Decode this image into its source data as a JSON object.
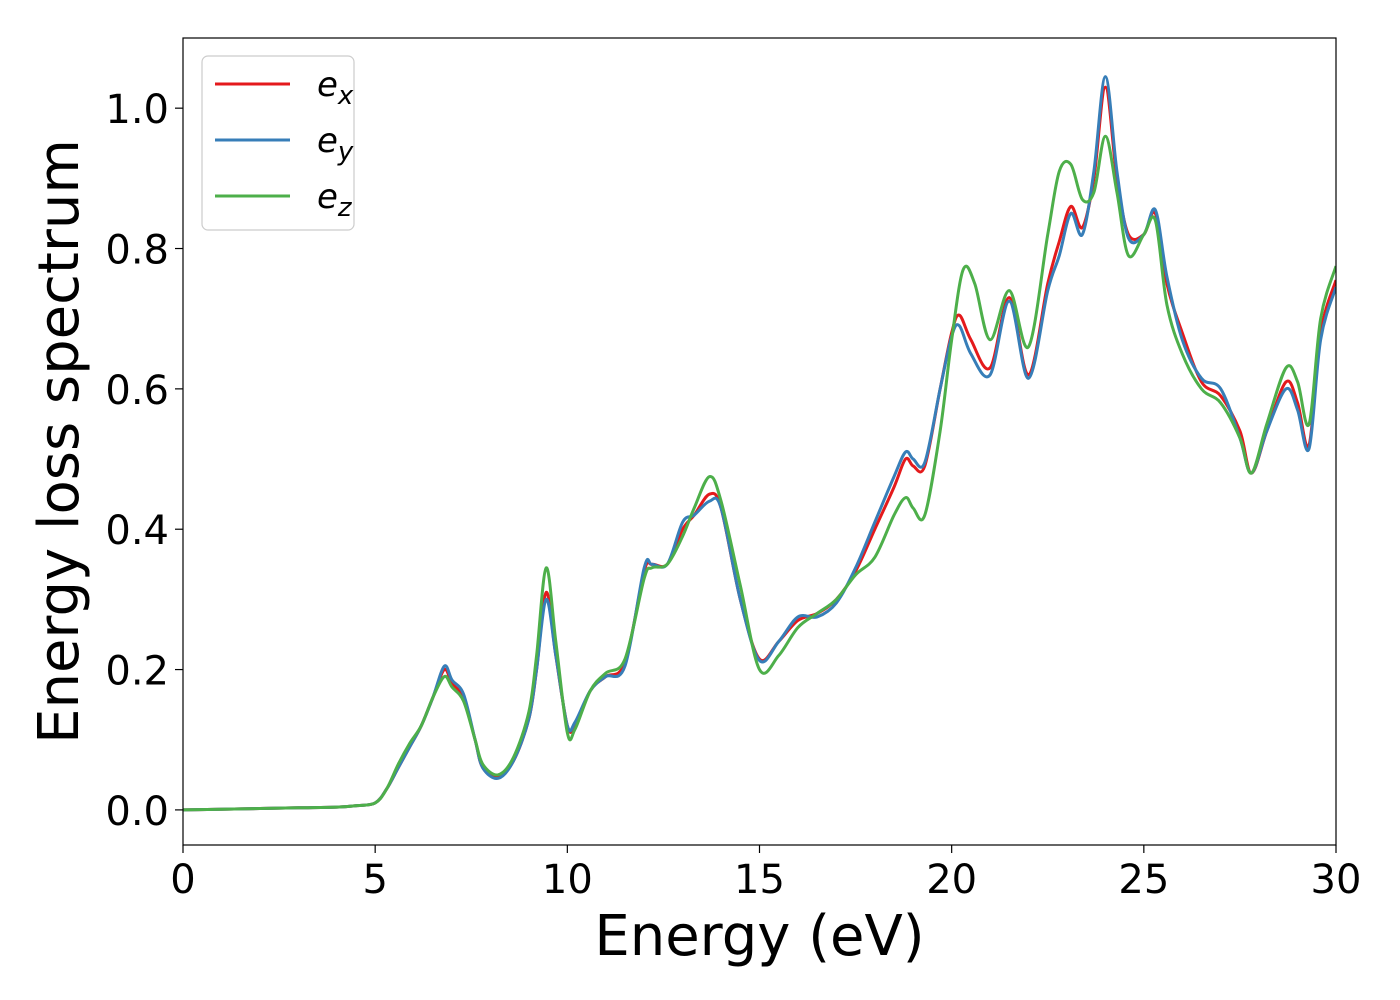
{
  "chart_data": {
    "type": "line",
    "title": "",
    "xlabel": "Energy (eV)",
    "ylabel": "Energy loss spectrum",
    "xlim": [
      0,
      30
    ],
    "ylim": [
      -0.05,
      1.1
    ],
    "xticks": [
      0,
      5,
      10,
      15,
      20,
      25,
      30
    ],
    "xtick_labels": [
      "0",
      "5",
      "10",
      "15",
      "20",
      "25",
      "30"
    ],
    "yticks": [
      0.0,
      0.2,
      0.4,
      0.6,
      0.8,
      1.0
    ],
    "ytick_labels": [
      "0.0",
      "0.2",
      "0.4",
      "0.6",
      "0.8",
      "1.0"
    ],
    "grid": false,
    "legend_position": "top-left",
    "series": [
      {
        "name": "e_x",
        "label_base": "e",
        "label_sub": "x",
        "color": "#e41a1c",
        "x": [
          0,
          1,
          2,
          3,
          4,
          4.5,
          5,
          5.3,
          5.6,
          5.9,
          6.2,
          6.5,
          6.8,
          7.0,
          7.3,
          7.6,
          7.8,
          8.2,
          8.6,
          9.0,
          9.2,
          9.45,
          9.7,
          10.0,
          10.2,
          10.6,
          11.0,
          11.5,
          12.0,
          12.2,
          12.6,
          13.0,
          13.3,
          13.7,
          14.0,
          14.5,
          15.0,
          15.5,
          16.0,
          16.5,
          17.0,
          17.5,
          18.0,
          18.5,
          18.8,
          19.0,
          19.3,
          19.7,
          20.0,
          20.2,
          20.5,
          21.0,
          21.5,
          22.0,
          22.5,
          22.8,
          23.1,
          23.4,
          23.7,
          24.0,
          24.3,
          24.6,
          25.0,
          25.3,
          25.6,
          26.0,
          26.5,
          27.0,
          27.5,
          27.8,
          28.2,
          28.7,
          29.0,
          29.3,
          29.6,
          30.0
        ],
        "values": [
          0.0,
          0.001,
          0.002,
          0.003,
          0.004,
          0.006,
          0.01,
          0.03,
          0.06,
          0.09,
          0.12,
          0.16,
          0.2,
          0.18,
          0.16,
          0.1,
          0.06,
          0.048,
          0.07,
          0.13,
          0.2,
          0.31,
          0.22,
          0.12,
          0.12,
          0.17,
          0.19,
          0.21,
          0.34,
          0.35,
          0.35,
          0.4,
          0.42,
          0.45,
          0.43,
          0.3,
          0.215,
          0.24,
          0.27,
          0.28,
          0.3,
          0.34,
          0.4,
          0.46,
          0.5,
          0.49,
          0.49,
          0.6,
          0.68,
          0.705,
          0.67,
          0.63,
          0.73,
          0.62,
          0.75,
          0.81,
          0.86,
          0.83,
          0.9,
          1.03,
          0.9,
          0.82,
          0.82,
          0.85,
          0.75,
          0.68,
          0.61,
          0.59,
          0.54,
          0.48,
          0.54,
          0.61,
          0.58,
          0.52,
          0.68,
          0.755
        ]
      },
      {
        "name": "e_y",
        "label_base": "e",
        "label_sub": "y",
        "color": "#377eb8",
        "x": [
          0,
          1,
          2,
          3,
          4,
          4.5,
          5,
          5.3,
          5.6,
          5.9,
          6.2,
          6.5,
          6.8,
          7.0,
          7.3,
          7.6,
          7.8,
          8.2,
          8.6,
          9.0,
          9.2,
          9.45,
          9.7,
          10.0,
          10.2,
          10.6,
          11.0,
          11.5,
          12.0,
          12.2,
          12.6,
          13.0,
          13.3,
          13.7,
          14.0,
          14.5,
          15.0,
          15.5,
          16.0,
          16.5,
          17.0,
          17.5,
          18.0,
          18.5,
          18.8,
          19.0,
          19.3,
          19.7,
          20.0,
          20.2,
          20.5,
          21.0,
          21.5,
          22.0,
          22.5,
          22.8,
          23.1,
          23.4,
          23.7,
          24.0,
          24.3,
          24.6,
          25.0,
          25.3,
          25.6,
          26.0,
          26.5,
          27.0,
          27.5,
          27.8,
          28.2,
          28.7,
          29.0,
          29.3,
          29.6,
          30.0
        ],
        "values": [
          0.0,
          0.001,
          0.002,
          0.003,
          0.004,
          0.006,
          0.01,
          0.03,
          0.06,
          0.09,
          0.12,
          0.16,
          0.205,
          0.185,
          0.165,
          0.1,
          0.06,
          0.045,
          0.07,
          0.13,
          0.2,
          0.3,
          0.22,
          0.12,
          0.125,
          0.17,
          0.19,
          0.205,
          0.345,
          0.35,
          0.35,
          0.41,
          0.42,
          0.44,
          0.43,
          0.3,
          0.213,
          0.24,
          0.275,
          0.275,
          0.295,
          0.345,
          0.41,
          0.475,
          0.51,
          0.5,
          0.495,
          0.6,
          0.675,
          0.69,
          0.65,
          0.62,
          0.725,
          0.615,
          0.74,
          0.79,
          0.85,
          0.82,
          0.91,
          1.045,
          0.91,
          0.815,
          0.82,
          0.855,
          0.76,
          0.67,
          0.615,
          0.6,
          0.53,
          0.48,
          0.54,
          0.6,
          0.57,
          0.515,
          0.67,
          0.745
        ]
      },
      {
        "name": "e_z",
        "label_base": "e",
        "label_sub": "z",
        "color": "#4daf4a",
        "x": [
          0,
          1,
          2,
          3,
          4,
          4.5,
          5,
          5.3,
          5.6,
          5.9,
          6.2,
          6.5,
          6.8,
          7.0,
          7.3,
          7.6,
          7.8,
          8.2,
          8.6,
          9.0,
          9.2,
          9.45,
          9.7,
          10.0,
          10.2,
          10.6,
          11.0,
          11.5,
          12.0,
          12.2,
          12.6,
          13.0,
          13.3,
          13.7,
          14.0,
          14.5,
          15.0,
          15.5,
          16.0,
          16.5,
          17.0,
          17.5,
          18.0,
          18.5,
          18.8,
          19.0,
          19.3,
          19.7,
          20.0,
          20.3,
          20.6,
          21.0,
          21.5,
          22.0,
          22.5,
          22.8,
          23.1,
          23.4,
          23.7,
          24.0,
          24.3,
          24.6,
          25.0,
          25.3,
          25.6,
          26.0,
          26.5,
          27.0,
          27.5,
          27.8,
          28.2,
          28.7,
          29.0,
          29.3,
          29.6,
          30.0
        ],
        "values": [
          0.0,
          0.001,
          0.002,
          0.003,
          0.004,
          0.006,
          0.01,
          0.03,
          0.065,
          0.095,
          0.12,
          0.16,
          0.19,
          0.175,
          0.155,
          0.1,
          0.065,
          0.05,
          0.075,
          0.14,
          0.22,
          0.345,
          0.24,
          0.11,
          0.115,
          0.17,
          0.195,
          0.215,
          0.33,
          0.345,
          0.35,
          0.39,
          0.43,
          0.475,
          0.44,
          0.32,
          0.2,
          0.22,
          0.26,
          0.28,
          0.3,
          0.335,
          0.36,
          0.42,
          0.445,
          0.43,
          0.42,
          0.54,
          0.67,
          0.77,
          0.75,
          0.67,
          0.74,
          0.66,
          0.82,
          0.91,
          0.92,
          0.87,
          0.88,
          0.96,
          0.88,
          0.79,
          0.82,
          0.84,
          0.72,
          0.65,
          0.6,
          0.58,
          0.53,
          0.48,
          0.55,
          0.63,
          0.61,
          0.55,
          0.7,
          0.775
        ]
      }
    ]
  }
}
